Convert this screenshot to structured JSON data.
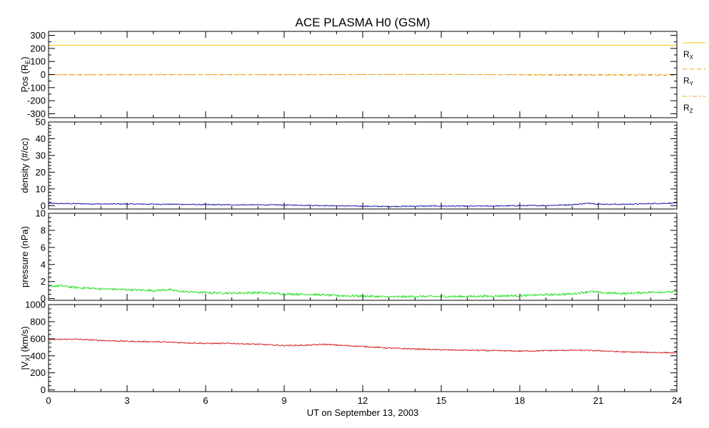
{
  "chart_data": {
    "title": "ACE PLASMA H0 (GSM)",
    "xlabel": "UT on September 13, 2003",
    "x_range": [
      0,
      24
    ],
    "x_ticks": [
      0,
      3,
      6,
      9,
      12,
      15,
      18,
      21,
      24
    ],
    "x_minor_step": 1,
    "panels": [
      {
        "id": "pos",
        "type": "line",
        "ylabel": "Pos (R",
        "ylabel_sub": "E",
        "ylabel_end": ")",
        "ylim": [
          -330,
          330
        ],
        "y_ticks": [
          -300,
          -200,
          -100,
          0,
          100,
          200,
          300
        ],
        "series": [
          {
            "name": "R",
            "sub": "X",
            "color": "#f0c800",
            "dash": "",
            "values": [
              [
                0,
                224
              ],
              [
                24,
                224
              ]
            ]
          },
          {
            "name": "R",
            "sub": "Y",
            "color": "#f0a020",
            "dash": "6 4",
            "values": [
              [
                0,
                -3
              ],
              [
                3,
                -2
              ],
              [
                6,
                -1
              ],
              [
                9,
                -2
              ],
              [
                12,
                0
              ],
              [
                15,
                1
              ],
              [
                18,
                -2
              ],
              [
                19,
                -6
              ],
              [
                21,
                -5
              ],
              [
                24,
                -6
              ]
            ]
          },
          {
            "name": "R",
            "sub": "Z",
            "color": "#e8a818",
            "dash": "6 3 2 3",
            "values": [
              [
                0,
                1
              ],
              [
                6,
                1
              ],
              [
                12,
                1
              ],
              [
                18,
                0
              ],
              [
                24,
                1
              ]
            ]
          }
        ]
      },
      {
        "id": "density",
        "type": "line",
        "ylabel": "density (#/cc)",
        "ylim": [
          -2,
          50
        ],
        "y_ticks": [
          0,
          10,
          20,
          30,
          40,
          50
        ],
        "series": [
          {
            "name": "",
            "color": "#1a1aa8",
            "values": [
              [
                0,
                1.3
              ],
              [
                1,
                1.2
              ],
              [
                2,
                1.0
              ],
              [
                3,
                1.0
              ],
              [
                4,
                0.9
              ],
              [
                5,
                0.8
              ],
              [
                6,
                0.6
              ],
              [
                7,
                0.5
              ],
              [
                8,
                0.5
              ],
              [
                9,
                0.4
              ],
              [
                10,
                0.2
              ],
              [
                11,
                -0.1
              ],
              [
                12,
                -0.3
              ],
              [
                13,
                -0.5
              ],
              [
                14,
                -0.3
              ],
              [
                15,
                -0.2
              ],
              [
                16,
                -0.3
              ],
              [
                17,
                -0.2
              ],
              [
                18,
                0.0
              ],
              [
                19,
                0.1
              ],
              [
                20,
                0.6
              ],
              [
                20.7,
                1.5
              ],
              [
                21,
                0.9
              ],
              [
                22,
                0.8
              ],
              [
                23,
                1.2
              ],
              [
                24,
                1.6
              ]
            ]
          }
        ]
      },
      {
        "id": "pressure",
        "type": "line",
        "ylabel": "pressure (nPa)",
        "ylim": [
          -0.2,
          10
        ],
        "y_ticks": [
          0,
          2,
          4,
          6,
          8,
          10
        ],
        "series": [
          {
            "name": "",
            "color": "#22e022",
            "values": [
              [
                0,
                1.45
              ],
              [
                0.5,
                1.5
              ],
              [
                1,
                1.3
              ],
              [
                2,
                1.15
              ],
              [
                3,
                1.05
              ],
              [
                4,
                0.95
              ],
              [
                4.6,
                1.05
              ],
              [
                5,
                0.85
              ],
              [
                6,
                0.7
              ],
              [
                7,
                0.65
              ],
              [
                8,
                0.7
              ],
              [
                9,
                0.55
              ],
              [
                10,
                0.5
              ],
              [
                11,
                0.35
              ],
              [
                12,
                0.3
              ],
              [
                13,
                0.2
              ],
              [
                14,
                0.25
              ],
              [
                15,
                0.25
              ],
              [
                16,
                0.25
              ],
              [
                17,
                0.3
              ],
              [
                18,
                0.35
              ],
              [
                19,
                0.45
              ],
              [
                20,
                0.55
              ],
              [
                20.7,
                0.85
              ],
              [
                21,
                0.7
              ],
              [
                22,
                0.6
              ],
              [
                23,
                0.75
              ],
              [
                24,
                0.8
              ]
            ]
          }
        ]
      },
      {
        "id": "vx",
        "type": "line",
        "ylabel": "|V",
        "ylabel_sub": "X",
        "ylabel_end": "| (km/s)",
        "ylim": [
          -20,
          1000
        ],
        "y_ticks": [
          0,
          200,
          400,
          600,
          800,
          1000
        ],
        "series": [
          {
            "name": "",
            "color": "#d82020",
            "values": [
              [
                0,
                590
              ],
              [
                1,
                595
              ],
              [
                2,
                580
              ],
              [
                3,
                570
              ],
              [
                4,
                565
              ],
              [
                5,
                555
              ],
              [
                6,
                545
              ],
              [
                7,
                545
              ],
              [
                8,
                535
              ],
              [
                9,
                520
              ],
              [
                10,
                525
              ],
              [
                10.5,
                535
              ],
              [
                11,
                525
              ],
              [
                12,
                510
              ],
              [
                13,
                490
              ],
              [
                14,
                480
              ],
              [
                15,
                470
              ],
              [
                16,
                465
              ],
              [
                17,
                460
              ],
              [
                18,
                455
              ],
              [
                19,
                460
              ],
              [
                20,
                465
              ],
              [
                21,
                460
              ],
              [
                22,
                445
              ],
              [
                23,
                440
              ],
              [
                24,
                435
              ]
            ]
          }
        ]
      }
    ]
  }
}
